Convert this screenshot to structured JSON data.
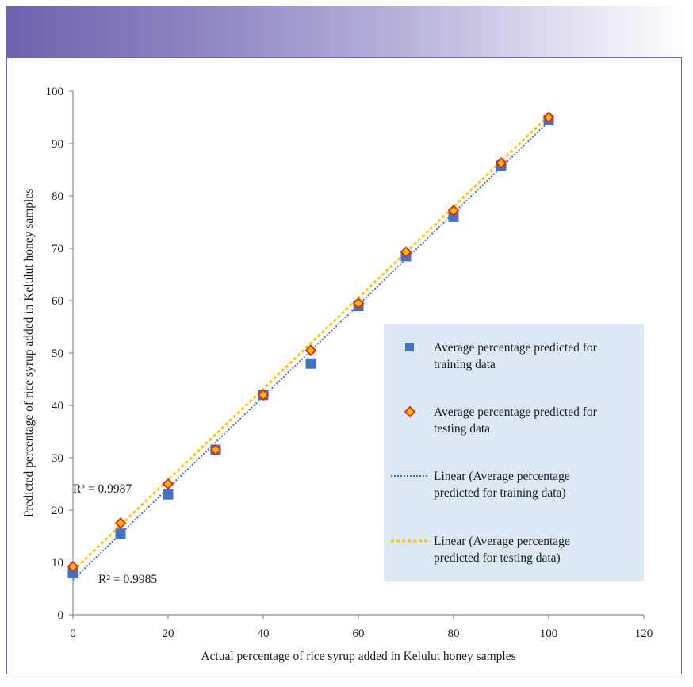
{
  "chart_data": {
    "type": "scatter",
    "title": "",
    "xlabel": "Actual percentage of rice syrup added in Kelulut honey samples",
    "ylabel": "Predicted percentage of rice syrup added in Kelulut honey samples",
    "xlim": [
      0,
      120
    ],
    "ylim": [
      0,
      100
    ],
    "xticks": [
      0,
      20,
      40,
      60,
      80,
      100,
      120
    ],
    "yticks": [
      0,
      10,
      20,
      30,
      40,
      50,
      60,
      70,
      80,
      90,
      100
    ],
    "grid": false,
    "legend_position": "right",
    "series": [
      {
        "name": "Average percentage predicted for training data",
        "marker": "square",
        "color": "#4472c4",
        "x": [
          0,
          10,
          20,
          30,
          40,
          50,
          60,
          70,
          80,
          90,
          100
        ],
        "y": [
          8.0,
          15.5,
          23.0,
          31.5,
          42.0,
          48.0,
          59.0,
          68.5,
          76.0,
          85.8,
          94.5
        ]
      },
      {
        "name": "Average percentage predicted for testing data",
        "marker": "diamond",
        "color": "#ffc000",
        "edge_color": "#e32c1c",
        "x": [
          0,
          10,
          20,
          30,
          40,
          50,
          60,
          70,
          80,
          90,
          100
        ],
        "y": [
          9.2,
          17.5,
          25.0,
          31.5,
          42.0,
          50.5,
          59.5,
          69.3,
          77.2,
          86.3,
          95.0
        ]
      }
    ],
    "trendlines": [
      {
        "name": "Linear (Average percentage predicted for training data)",
        "type": "linear",
        "color": "#4472c4",
        "style": "dotted",
        "x": [
          0,
          100
        ],
        "y": [
          6.7,
          94.2
        ]
      },
      {
        "name": "Linear (Average percentage predicted for testing data)",
        "type": "linear",
        "color": "#ffc000",
        "style": "dashed",
        "x": [
          0,
          100
        ],
        "y": [
          8.4,
          95.3
        ]
      }
    ],
    "annotations": [
      {
        "text": "R² = 0.9987",
        "near": "testing trendline, lower-left"
      },
      {
        "text": "R² = 0.9985",
        "near": "training trendline, lower-left"
      }
    ]
  },
  "legend": {
    "background": "#dde8f5",
    "entries": [
      {
        "text": "Average percentage predicted for training data",
        "lines": [
          "Average percentage predicted for",
          "training data"
        ]
      },
      {
        "text": "Average percentage predicted for testing data",
        "lines": [
          "Average percentage predicted for",
          "testing data"
        ]
      },
      {
        "text": "Linear (Average percentage predicted for training data)",
        "lines": [
          "Linear (Average percentage",
          "predicted for training data)"
        ]
      },
      {
        "text": "Linear (Average percentage predicted for testing data)",
        "lines": [
          "Linear (Average percentage",
          "predicted for testing data)"
        ]
      }
    ]
  },
  "colors": {
    "banner_start": "#6d62ad",
    "frame_border": "#6f67b0"
  }
}
